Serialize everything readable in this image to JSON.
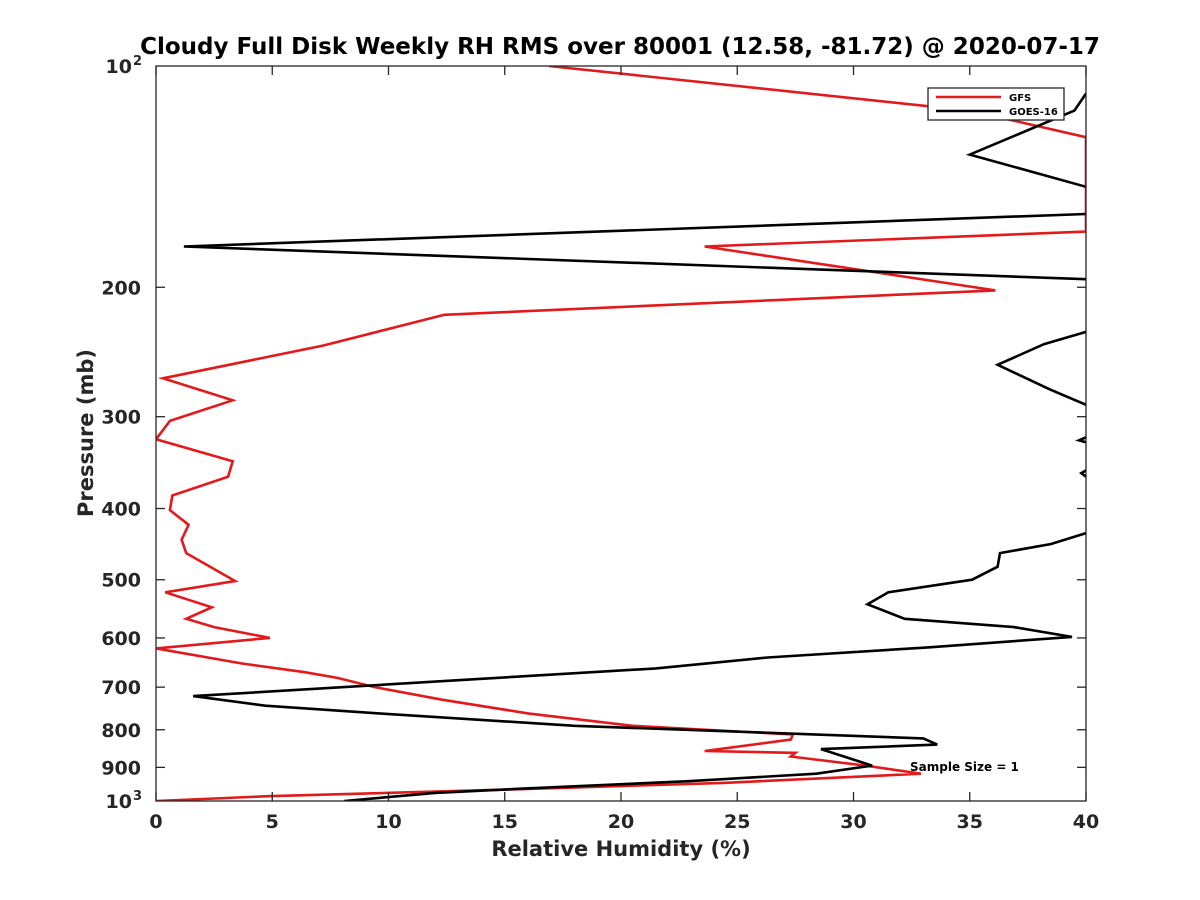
{
  "chart_data": {
    "type": "line",
    "title": "Cloudy Full Disk Weekly RH RMS over 80001 (12.58, -81.72) @ 2020-07-17",
    "xlabel": "Relative Humidity (%)",
    "ylabel": "Pressure (mb)",
    "xlim": [
      0,
      40
    ],
    "ylim": [
      100,
      1000
    ],
    "y_scale": "log",
    "y_reversed": true,
    "x_ticks": [
      0,
      5,
      10,
      15,
      20,
      25,
      30,
      35,
      40
    ],
    "x_tick_labels": [
      "0",
      "5",
      "10",
      "15",
      "20",
      "25",
      "30",
      "35",
      "40"
    ],
    "y_ticks": [
      200,
      300,
      400,
      500,
      600,
      700,
      800,
      900
    ],
    "y_tick_labels": [
      "200",
      "300",
      "400",
      "500",
      "600",
      "700",
      "800",
      "900"
    ],
    "y_min_label": {
      "base": "10",
      "exp": "2"
    },
    "y_max_label": {
      "base": "10",
      "exp": "3"
    },
    "grid": false,
    "legend_position": "top-right",
    "annotation": "Sample Size = 1",
    "series": [
      {
        "name": "GFS",
        "color": "#e31a1c",
        "points": [
          [
            16.9,
            100
          ],
          [
            35,
            115
          ],
          [
            40,
            125
          ],
          [
            40,
            168
          ],
          [
            23.6,
            176
          ],
          [
            36.1,
            202
          ],
          [
            12.4,
            218
          ],
          [
            7.2,
            240
          ],
          [
            0.3,
            266
          ],
          [
            3.3,
            285
          ],
          [
            0.6,
            304
          ],
          [
            0.0,
            322
          ],
          [
            3.3,
            345
          ],
          [
            3.1,
            362
          ],
          [
            0.7,
            384
          ],
          [
            0.6,
            402
          ],
          [
            1.4,
            421
          ],
          [
            1.1,
            441
          ],
          [
            1.3,
            460
          ],
          [
            3.4,
            502
          ],
          [
            0.4,
            520
          ],
          [
            2.4,
            545
          ],
          [
            1.3,
            565
          ],
          [
            2.5,
            580
          ],
          [
            4.9,
            600
          ],
          [
            0.0,
            620
          ],
          [
            3.7,
            650
          ],
          [
            6.4,
            668
          ],
          [
            7.8,
            680
          ],
          [
            9.4,
            700
          ],
          [
            12.3,
            728
          ],
          [
            16.0,
            760
          ],
          [
            20.5,
            790
          ],
          [
            27.4,
            812
          ],
          [
            27.3,
            825
          ],
          [
            23.6,
            855
          ],
          [
            27.5,
            860
          ],
          [
            27.3,
            870
          ],
          [
            30.5,
            895
          ],
          [
            32.9,
            918
          ],
          [
            24.4,
            945
          ],
          [
            15.1,
            965
          ],
          [
            4.8,
            985
          ],
          [
            0.0,
            1000
          ]
        ]
      },
      {
        "name": "GOES-16",
        "color": "#000000",
        "points": [
          [
            40,
            109
          ],
          [
            39.5,
            115
          ],
          [
            35,
            132
          ],
          [
            40,
            146
          ],
          null,
          [
            40,
            159
          ],
          [
            1.2,
            176
          ],
          [
            40,
            195
          ],
          null,
          [
            40,
            230
          ],
          [
            38.2,
            239
          ],
          [
            36.2,
            255
          ],
          [
            38.4,
            275
          ],
          [
            40,
            289
          ],
          null,
          [
            40,
            320
          ],
          [
            39.7,
            323
          ],
          [
            40,
            325
          ],
          null,
          [
            40,
            355
          ],
          [
            39.8,
            358
          ],
          [
            40,
            362
          ],
          null,
          [
            40,
            432
          ],
          [
            38.5,
            447
          ],
          [
            36.3,
            460
          ],
          [
            36.2,
            480
          ],
          [
            35.1,
            500
          ],
          [
            31.5,
            520
          ],
          [
            30.6,
            540
          ],
          [
            32.2,
            565
          ],
          [
            36.9,
            580
          ],
          [
            39.4,
            598
          ],
          [
            33.2,
            618
          ],
          [
            26.3,
            638
          ],
          [
            21.5,
            660
          ],
          [
            13.0,
            685
          ],
          [
            1.6,
            720
          ],
          [
            4.7,
            742
          ],
          [
            9.6,
            760
          ],
          [
            18.0,
            790
          ],
          [
            33.0,
            822
          ],
          [
            33.6,
            838
          ],
          [
            28.6,
            850
          ],
          [
            30.8,
            895
          ],
          [
            28.4,
            918
          ],
          [
            22.9,
            940
          ],
          [
            15.8,
            962
          ],
          [
            12.0,
            975
          ],
          [
            8.1,
            1000
          ]
        ]
      }
    ]
  }
}
